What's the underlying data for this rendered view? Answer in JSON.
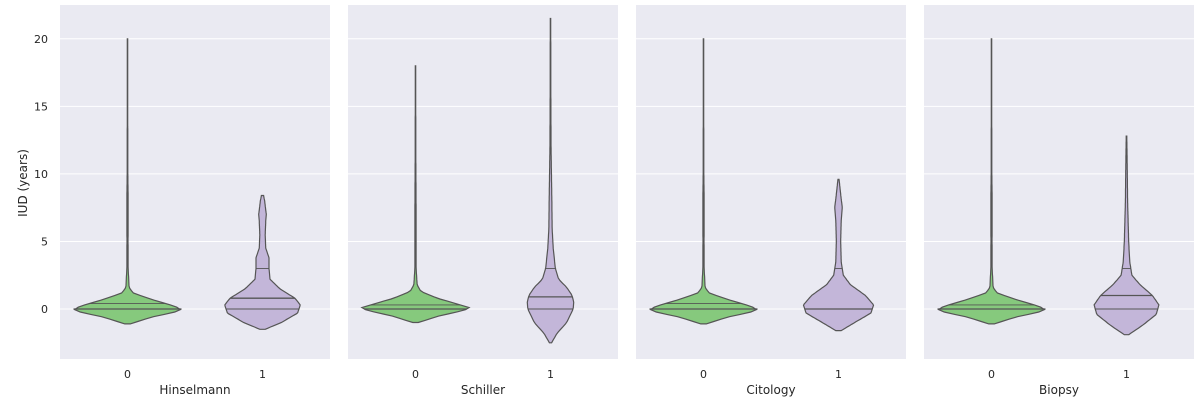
{
  "colors": {
    "panel_bg": "#eaeaf2",
    "grid": "#ffffff",
    "violin_0": "#86c97d",
    "violin_1": "#c3b6d9",
    "stroke": "#555555"
  },
  "ylabel": "IUD (years)",
  "chart_data": [
    {
      "type": "violin",
      "xlabel": "Hinselmann",
      "categories": [
        "0",
        "1"
      ],
      "ylim": [
        -3.7,
        22.5
      ],
      "yticks": [
        0,
        5,
        10,
        15,
        20
      ],
      "grid": true,
      "series": [
        {
          "category": "0",
          "min": -1.1,
          "max": 20,
          "quartiles": [
            0,
            0,
            0.4
          ],
          "density": [
            [
              -1.1,
              0.05
            ],
            [
              -0.6,
              0.45
            ],
            [
              -0.2,
              0.9
            ],
            [
              0,
              1.0
            ],
            [
              0.3,
              0.8
            ],
            [
              0.7,
              0.45
            ],
            [
              1.2,
              0.1
            ],
            [
              1.6,
              0.03
            ],
            [
              3,
              0.012
            ],
            [
              5,
              0.01
            ],
            [
              8,
              0.012
            ],
            [
              10,
              0.006
            ],
            [
              15,
              0.004
            ],
            [
              20,
              0.004
            ]
          ]
        },
        {
          "category": "1",
          "min": -1.5,
          "max": 8.4,
          "quartiles": [
            0,
            0.8,
            3
          ],
          "density": [
            [
              -1.5,
              0.05
            ],
            [
              -1,
              0.35
            ],
            [
              -0.3,
              0.65
            ],
            [
              0.3,
              0.7
            ],
            [
              0.8,
              0.6
            ],
            [
              1.5,
              0.32
            ],
            [
              2.2,
              0.14
            ],
            [
              3,
              0.12
            ],
            [
              3.8,
              0.12
            ],
            [
              4.5,
              0.06
            ],
            [
              5.5,
              0.05
            ],
            [
              6.5,
              0.06
            ],
            [
              7,
              0.07
            ],
            [
              8,
              0.04
            ],
            [
              8.4,
              0.02
            ]
          ]
        }
      ]
    },
    {
      "type": "violin",
      "xlabel": "Schiller",
      "categories": [
        "0",
        "1"
      ],
      "ylim": [
        -3.7,
        22.5
      ],
      "yticks": [
        0,
        5,
        10,
        15,
        20
      ],
      "grid": true,
      "series": [
        {
          "category": "0",
          "min": -1.0,
          "max": 18,
          "quartiles": [
            0,
            0,
            0.3
          ],
          "density": [
            [
              -1.0,
              0.05
            ],
            [
              -0.5,
              0.45
            ],
            [
              -0.1,
              0.9
            ],
            [
              0.1,
              1.0
            ],
            [
              0.4,
              0.75
            ],
            [
              0.8,
              0.4
            ],
            [
              1.3,
              0.1
            ],
            [
              1.8,
              0.03
            ],
            [
              3,
              0.012
            ],
            [
              5,
              0.012
            ],
            [
              8,
              0.01
            ],
            [
              12,
              0.005
            ],
            [
              18,
              0.004
            ]
          ]
        },
        {
          "category": "1",
          "min": -2.5,
          "max": 21.5,
          "quartiles": [
            0,
            0.9,
            3
          ],
          "density": [
            [
              -2.5,
              0.02
            ],
            [
              -1.8,
              0.12
            ],
            [
              -1,
              0.3
            ],
            [
              0,
              0.42
            ],
            [
              0.5,
              0.43
            ],
            [
              1,
              0.4
            ],
            [
              1.6,
              0.3
            ],
            [
              2.2,
              0.15
            ],
            [
              3,
              0.09
            ],
            [
              4.5,
              0.05
            ],
            [
              6,
              0.03
            ],
            [
              8,
              0.025
            ],
            [
              12,
              0.01
            ],
            [
              16,
              0.006
            ],
            [
              21.5,
              0.004
            ]
          ]
        }
      ]
    },
    {
      "type": "violin",
      "xlabel": "Citology",
      "categories": [
        "0",
        "1"
      ],
      "ylim": [
        -3.7,
        22.5
      ],
      "yticks": [
        0,
        5,
        10,
        15,
        20
      ],
      "grid": true,
      "series": [
        {
          "category": "0",
          "min": -1.1,
          "max": 20,
          "quartiles": [
            0,
            0,
            0.4
          ],
          "density": [
            [
              -1.1,
              0.05
            ],
            [
              -0.6,
              0.45
            ],
            [
              -0.2,
              0.9
            ],
            [
              0,
              1.0
            ],
            [
              0.3,
              0.8
            ],
            [
              0.7,
              0.45
            ],
            [
              1.2,
              0.1
            ],
            [
              1.6,
              0.03
            ],
            [
              3,
              0.012
            ],
            [
              5,
              0.01
            ],
            [
              8,
              0.012
            ],
            [
              10,
              0.006
            ],
            [
              15,
              0.004
            ],
            [
              20,
              0.004
            ]
          ]
        },
        {
          "category": "1",
          "min": -1.6,
          "max": 9.6,
          "quartiles": [
            0,
            0,
            3
          ],
          "density": [
            [
              -1.6,
              0.05
            ],
            [
              -1,
              0.3
            ],
            [
              -0.3,
              0.6
            ],
            [
              0.3,
              0.65
            ],
            [
              1,
              0.5
            ],
            [
              1.8,
              0.22
            ],
            [
              2.5,
              0.09
            ],
            [
              3.5,
              0.05
            ],
            [
              5,
              0.04
            ],
            [
              6.5,
              0.05
            ],
            [
              7.5,
              0.07
            ],
            [
              8.5,
              0.04
            ],
            [
              9.6,
              0.01
            ]
          ]
        }
      ]
    },
    {
      "type": "violin",
      "xlabel": "Biopsy",
      "categories": [
        "0",
        "1"
      ],
      "ylim": [
        -3.7,
        22.5
      ],
      "yticks": [
        0,
        5,
        10,
        15,
        20
      ],
      "grid": true,
      "series": [
        {
          "category": "0",
          "min": -1.1,
          "max": 20,
          "quartiles": [
            0,
            0,
            0.3
          ],
          "density": [
            [
              -1.1,
              0.05
            ],
            [
              -0.6,
              0.45
            ],
            [
              -0.2,
              0.9
            ],
            [
              0,
              1.0
            ],
            [
              0.3,
              0.8
            ],
            [
              0.7,
              0.45
            ],
            [
              1.2,
              0.1
            ],
            [
              1.6,
              0.03
            ],
            [
              3,
              0.012
            ],
            [
              5,
              0.01
            ],
            [
              8,
              0.012
            ],
            [
              10,
              0.006
            ],
            [
              15,
              0.004
            ],
            [
              20,
              0.004
            ]
          ]
        },
        {
          "category": "1",
          "min": -1.9,
          "max": 12.8,
          "quartiles": [
            0,
            1,
            3
          ],
          "density": [
            [
              -1.9,
              0.04
            ],
            [
              -1.2,
              0.3
            ],
            [
              -0.4,
              0.55
            ],
            [
              0.3,
              0.6
            ],
            [
              1,
              0.48
            ],
            [
              1.8,
              0.25
            ],
            [
              2.5,
              0.1
            ],
            [
              3.5,
              0.06
            ],
            [
              5,
              0.04
            ],
            [
              6.5,
              0.03
            ],
            [
              8,
              0.02
            ],
            [
              10,
              0.015
            ],
            [
              12.8,
              0.005
            ]
          ]
        }
      ]
    }
  ]
}
